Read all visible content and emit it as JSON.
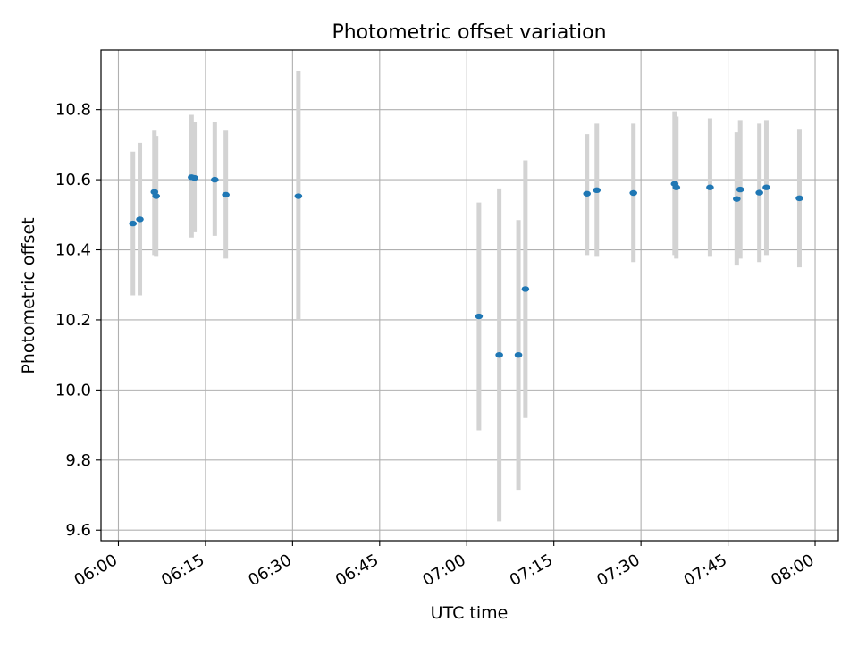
{
  "chart_data": {
    "type": "scatter",
    "title": "Photometric offset variation",
    "xlabel": "UTC time",
    "ylabel": "Photometric offset",
    "xlim": [
      "05:57",
      "08:04"
    ],
    "ylim": [
      9.57,
      10.97
    ],
    "x_ticks": [
      "06:00",
      "06:15",
      "06:30",
      "06:45",
      "07:00",
      "07:15",
      "07:30",
      "07:45",
      "08:00"
    ],
    "y_ticks": [
      "9.6",
      "9.8",
      "10.0",
      "10.2",
      "10.4",
      "10.6",
      "10.8"
    ],
    "grid": true,
    "series": [
      {
        "color": "#1f77b4",
        "errorbar_color": "#d3d3d3",
        "points": [
          {
            "x": "06:02.5",
            "y": 10.475,
            "lo": 10.27,
            "hi": 10.68
          },
          {
            "x": "06:03.7",
            "y": 10.487,
            "lo": 10.27,
            "hi": 10.705
          },
          {
            "x": "06:06.2",
            "y": 10.565,
            "lo": 10.385,
            "hi": 10.74
          },
          {
            "x": "06:06.5",
            "y": 10.553,
            "lo": 10.38,
            "hi": 10.725
          },
          {
            "x": "06:12.6",
            "y": 10.607,
            "lo": 10.435,
            "hi": 10.785
          },
          {
            "x": "06:13.1",
            "y": 10.605,
            "lo": 10.45,
            "hi": 10.765
          },
          {
            "x": "06:16.6",
            "y": 10.6,
            "lo": 10.44,
            "hi": 10.765
          },
          {
            "x": "06:18.5",
            "y": 10.557,
            "lo": 10.375,
            "hi": 10.74
          },
          {
            "x": "06:31.0",
            "y": 10.553,
            "lo": 10.2,
            "hi": 10.91
          },
          {
            "x": "07:02.1",
            "y": 10.21,
            "lo": 9.885,
            "hi": 10.535
          },
          {
            "x": "07:05.6",
            "y": 10.1,
            "lo": 9.625,
            "hi": 10.575
          },
          {
            "x": "07:08.9",
            "y": 10.1,
            "lo": 9.715,
            "hi": 10.485
          },
          {
            "x": "07:10.1",
            "y": 10.288,
            "lo": 9.92,
            "hi": 10.655
          },
          {
            "x": "07:20.7",
            "y": 10.56,
            "lo": 10.385,
            "hi": 10.73
          },
          {
            "x": "07:22.4",
            "y": 10.57,
            "lo": 10.38,
            "hi": 10.76
          },
          {
            "x": "07:28.7",
            "y": 10.562,
            "lo": 10.365,
            "hi": 10.76
          },
          {
            "x": "07:35.8",
            "y": 10.588,
            "lo": 10.385,
            "hi": 10.795
          },
          {
            "x": "07:36.1",
            "y": 10.578,
            "lo": 10.375,
            "hi": 10.78
          },
          {
            "x": "07:41.9",
            "y": 10.578,
            "lo": 10.38,
            "hi": 10.775
          },
          {
            "x": "07:46.5",
            "y": 10.545,
            "lo": 10.355,
            "hi": 10.735
          },
          {
            "x": "07:47.1",
            "y": 10.572,
            "lo": 10.375,
            "hi": 10.77
          },
          {
            "x": "07:50.4",
            "y": 10.563,
            "lo": 10.365,
            "hi": 10.76
          },
          {
            "x": "07:51.6",
            "y": 10.578,
            "lo": 10.385,
            "hi": 10.77
          },
          {
            "x": "07:57.3",
            "y": 10.547,
            "lo": 10.35,
            "hi": 10.745
          }
        ]
      }
    ]
  }
}
